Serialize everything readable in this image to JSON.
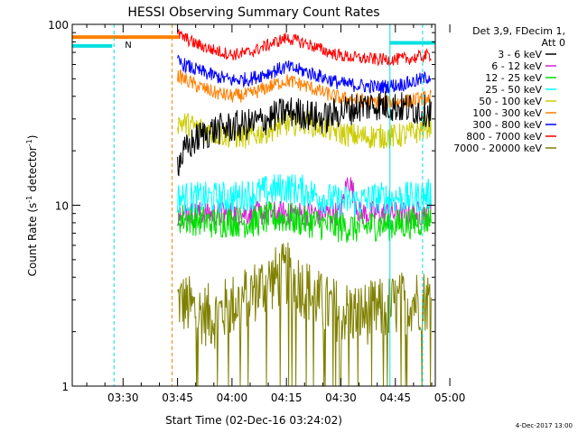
{
  "chart_data": {
    "type": "line",
    "title": "HESSI Observing Summary Count Rates",
    "xlabel": "Start Time (02-Dec-16 03:24:02)",
    "ylabel_main": "Count Rate (s",
    "ylabel_sup1": "-1",
    "ylabel_mid": " detector",
    "ylabel_sup2": "-1",
    "ylabel_end": ")",
    "yscale": "log",
    "ylim": [
      1,
      100
    ],
    "xlim_minutes": [
      -29,
      71
    ],
    "x_ticks": [
      {
        "label": "03:30",
        "minute": -15
      },
      {
        "label": "03:45",
        "minute": 0
      },
      {
        "label": "04:00",
        "minute": 15
      },
      {
        "label": "04:15",
        "minute": 30
      },
      {
        "label": "04:30",
        "minute": 45
      },
      {
        "label": "04:45",
        "minute": 60
      },
      {
        "label": "05:00",
        "minute": 75
      }
    ],
    "y_ticks": [
      {
        "label": "1",
        "value": 1
      },
      {
        "label": "10",
        "value": 10
      },
      {
        "label": "100",
        "value": 100
      }
    ],
    "legend_header": [
      "Det 3,9, FDecim 1,",
      "Att 0"
    ],
    "legend_position": "right-outside",
    "series": [
      {
        "name": "3 - 6 keV",
        "color": "#000000",
        "x": [
          0,
          3,
          6,
          10,
          15,
          20,
          25,
          30,
          35,
          40,
          45,
          50,
          55,
          60,
          65,
          70
        ],
        "values": [
          17,
          21,
          24,
          26,
          27,
          28,
          30,
          33,
          32,
          30,
          33,
          35,
          36,
          35,
          34,
          33
        ]
      },
      {
        "name": "6 - 12 keV",
        "color": "#d422d4",
        "x": [
          0,
          5,
          10,
          15,
          20,
          25,
          30,
          35,
          40,
          45,
          47,
          50,
          55,
          60,
          65,
          70
        ],
        "values": [
          9,
          9,
          9,
          9,
          9,
          9,
          9,
          9,
          9,
          9,
          14,
          9,
          9,
          9,
          9,
          9
        ]
      },
      {
        "name": "12 - 25 keV",
        "color": "#00dd00",
        "x": [
          0,
          5,
          10,
          15,
          20,
          25,
          30,
          35,
          40,
          45,
          50,
          55,
          60,
          65,
          70
        ],
        "values": [
          8.5,
          8.3,
          8.0,
          8.2,
          8.0,
          8.5,
          8.5,
          8.2,
          7.8,
          7.6,
          7.5,
          7.8,
          7.8,
          8,
          8.5
        ]
      },
      {
        "name": "25 - 50 keV",
        "color": "#00ffff",
        "x": [
          0,
          5,
          10,
          15,
          20,
          25,
          30,
          35,
          40,
          45,
          50,
          55,
          60,
          65,
          70
        ],
        "values": [
          11,
          11,
          11,
          11,
          11.5,
          12,
          12.5,
          12,
          11,
          10.5,
          10.5,
          11,
          11,
          11,
          11.5
        ]
      },
      {
        "name": "50 - 100 keV",
        "color": "#cccc00",
        "x": [
          0,
          5,
          10,
          15,
          20,
          25,
          30,
          35,
          40,
          45,
          50,
          55,
          60,
          65,
          70
        ],
        "values": [
          29,
          27,
          25,
          24,
          24,
          26,
          28,
          29,
          27,
          25,
          24,
          24,
          24,
          25,
          28
        ]
      },
      {
        "name": "100 - 300 keV",
        "color": "#ff7f00",
        "x": [
          0,
          5,
          10,
          15,
          20,
          25,
          30,
          35,
          40,
          45,
          50,
          55,
          60,
          65,
          70
        ],
        "values": [
          52,
          46,
          42,
          40,
          41,
          45,
          49,
          46,
          42,
          39,
          38,
          37,
          37,
          38,
          40
        ]
      },
      {
        "name": "300 - 800 keV",
        "color": "#0000ff",
        "x": [
          0,
          5,
          10,
          15,
          20,
          25,
          30,
          35,
          40,
          45,
          50,
          55,
          60,
          65,
          70
        ],
        "values": [
          62,
          56,
          52,
          49,
          50,
          54,
          58,
          55,
          51,
          47,
          46,
          45,
          46,
          48,
          52
        ]
      },
      {
        "name": "800 - 7000 keV",
        "color": "#ff0000",
        "x": [
          0,
          5,
          10,
          15,
          20,
          25,
          30,
          35,
          40,
          45,
          50,
          55,
          60,
          65,
          70
        ],
        "values": [
          88,
          78,
          72,
          68,
          70,
          77,
          84,
          79,
          72,
          67,
          65,
          64,
          64,
          65,
          68
        ]
      },
      {
        "name": "7000 - 20000 keV",
        "color": "#808000",
        "x": [
          0,
          5,
          10,
          15,
          20,
          25,
          30,
          35,
          40,
          45,
          50,
          55,
          60,
          65,
          70
        ],
        "values": [
          3,
          2.6,
          2.4,
          2.8,
          3.2,
          3.8,
          4.2,
          3.5,
          2.8,
          2.6,
          2.5,
          2.6,
          2.8,
          3,
          3
        ]
      }
    ],
    "flags": [
      {
        "label": "N",
        "color": "#00e0e0"
      },
      {
        "label": "",
        "color": "#ff7f00"
      }
    ],
    "footer_timestamp": "4-Dec-2017 13:00"
  }
}
